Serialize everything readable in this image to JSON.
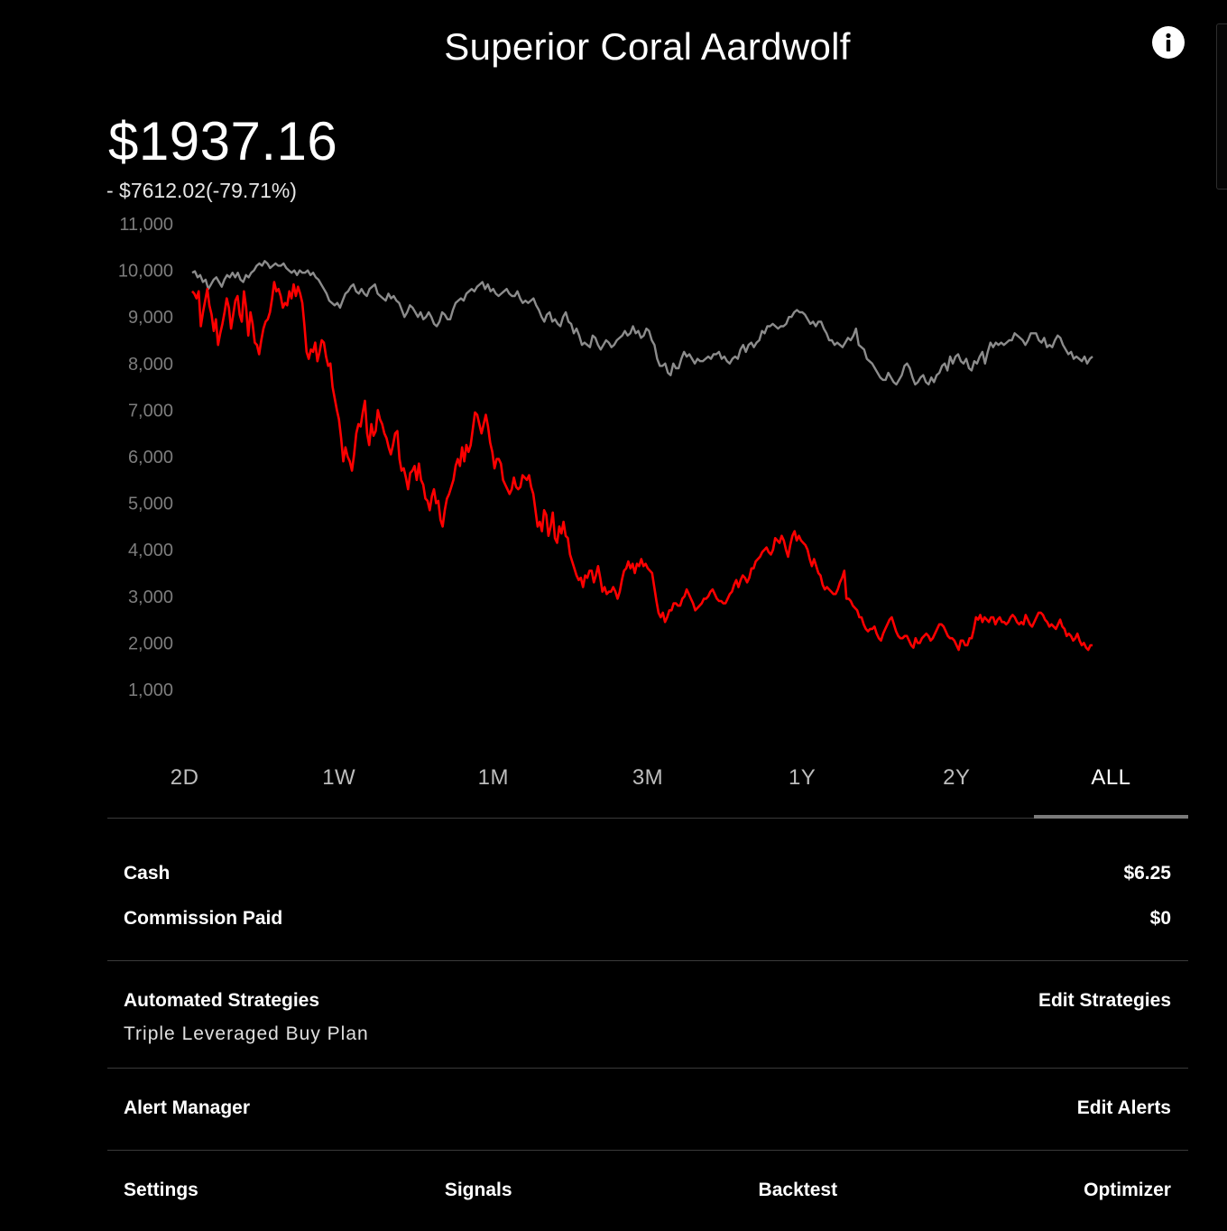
{
  "header": {
    "title": "Superior Coral Aardwolf",
    "info_icon": "info-icon"
  },
  "portfolio": {
    "balance": "$1937.16",
    "change": "- $7612.02(-79.71%)"
  },
  "chart_data": {
    "type": "line",
    "y_ticks": [
      "11,000",
      "10,000",
      "9,000",
      "8,000",
      "7,000",
      "6,000",
      "5,000",
      "4,000",
      "3,000",
      "2,000",
      "1,000"
    ],
    "ylim": [
      0,
      11000
    ],
    "grid": false,
    "series": [
      {
        "color": "#8c8c8c",
        "values": [
          9950,
          9980,
          9850,
          9900,
          9750,
          9800,
          9600,
          9700,
          9800,
          9850,
          9750,
          9650,
          9800,
          9900,
          9850,
          9950,
          9850,
          9950,
          9800,
          9750,
          9900,
          9850,
          9950,
          10000,
          10100,
          10150,
          10100,
          10200,
          10150,
          10050,
          10100,
          10150,
          10100,
          10100,
          10150,
          10050,
          10000,
          9950,
          10000,
          9900,
          10000,
          9950,
          9950,
          10000,
          9900,
          9950,
          9850,
          9800,
          9700,
          9600,
          9500,
          9350,
          9300,
          9250,
          9300,
          9200,
          9350,
          9500,
          9550,
          9650,
          9700,
          9550,
          9500,
          9600,
          9500,
          9450,
          9600,
          9650,
          9700,
          9500,
          9450,
          9400,
          9350,
          9500,
          9400,
          9450,
          9350,
          9300,
          9150,
          9000,
          9100,
          9250,
          9200,
          9100,
          9000,
          9100,
          8950,
          9000,
          9100,
          9000,
          8850,
          8800,
          8900,
          9100,
          9050,
          8950,
          8950,
          9150,
          9300,
          9350,
          9400,
          9350,
          9500,
          9550,
          9600,
          9550,
          9650,
          9700,
          9750,
          9600,
          9700,
          9550,
          9600,
          9500,
          9450,
          9500,
          9550,
          9600,
          9500,
          9450,
          9450,
          9550,
          9400,
          9300,
          9350,
          9300,
          9350,
          9400,
          9250,
          9150,
          9000,
          8900,
          9050,
          9100,
          8900,
          8950,
          8850,
          8800,
          9000,
          9100,
          8900,
          8850,
          8650,
          8750,
          8600,
          8400,
          8450,
          8400,
          8350,
          8600,
          8550,
          8400,
          8300,
          8400,
          8500,
          8450,
          8350,
          8400,
          8500,
          8550,
          8600,
          8700,
          8600,
          8650,
          8800,
          8650,
          8700,
          8550,
          8600,
          8750,
          8700,
          8500,
          8400,
          8100,
          7950,
          7950,
          8000,
          7800,
          7750,
          8000,
          7900,
          7900,
          8100,
          8250,
          8150,
          8200,
          8100,
          8000,
          8100,
          8050,
          8050,
          8100,
          8150,
          8100,
          8200,
          8200,
          8250,
          8100,
          8150,
          8050,
          8000,
          8100,
          8150,
          8100,
          8300,
          8400,
          8250,
          8400,
          8450,
          8350,
          8450,
          8500,
          8700,
          8650,
          8800,
          8800,
          8850,
          8800,
          8750,
          8800,
          8800,
          8850,
          9000,
          9000,
          9100,
          9150,
          9100,
          9100,
          9050,
          8950,
          8850,
          8900,
          8800,
          8900,
          8900,
          8750,
          8650,
          8500,
          8500,
          8400,
          8450,
          8400,
          8350,
          8450,
          8550,
          8500,
          8600,
          8750,
          8400,
          8350,
          8300,
          8100,
          8050,
          8000,
          7900,
          7800,
          7700,
          7650,
          7650,
          7800,
          7700,
          7600,
          7550,
          7650,
          7750,
          7950,
          8000,
          7900,
          7700,
          7550,
          7600,
          7700,
          7750,
          7600,
          7550,
          7700,
          7600,
          7750,
          7800,
          7950,
          8000,
          7850,
          8150,
          8000,
          8150,
          8200,
          8050,
          8000,
          8100,
          7900,
          7850,
          8050,
          8000,
          8150,
          8250,
          8000,
          8250,
          8450,
          8350,
          8450,
          8400,
          8450,
          8400,
          8450,
          8500,
          8500,
          8650,
          8600,
          8550,
          8500,
          8400,
          8500,
          8650,
          8650,
          8650,
          8500,
          8450,
          8550,
          8350,
          8400,
          8350,
          8500,
          8600,
          8550,
          8400,
          8300,
          8200,
          8250,
          8100,
          8150,
          8100,
          8050,
          8150,
          8000,
          8100,
          8150
        ]
      },
      {
        "color": "#ff0000",
        "values": [
          9550,
          9500,
          9400,
          9550,
          8800,
          9100,
          9350,
          9600,
          9250,
          9050,
          8700,
          8950,
          8400,
          8650,
          8850,
          9100,
          9400,
          9200,
          8750,
          9050,
          9350,
          9450,
          9050,
          8900,
          9550,
          9200,
          8600,
          9100,
          8850,
          8450,
          8400,
          8200,
          8500,
          8750,
          8900,
          8950,
          9100,
          9400,
          9750,
          9550,
          9600,
          9450,
          9200,
          9300,
          9250,
          9550,
          9400,
          9700,
          9450,
          9650,
          9500,
          9300,
          8800,
          8250,
          8100,
          8300,
          8250,
          8450,
          8050,
          8250,
          8500,
          8450,
          8150,
          7950,
          8000,
          7500,
          7250,
          7000,
          6800,
          6400,
          5900,
          6200,
          6000,
          5900,
          5700,
          6050,
          6500,
          6700,
          6650,
          6950,
          7200,
          6500,
          6250,
          6700,
          6450,
          6550,
          7000,
          6800,
          6700,
          6500,
          6400,
          6200,
          6050,
          6250,
          6500,
          6550,
          5950,
          5700,
          5750,
          5550,
          5300,
          5650,
          5700,
          5800,
          5500,
          5850,
          5500,
          5400,
          5100,
          5050,
          4850,
          5150,
          5300,
          5000,
          5050,
          4650,
          4500,
          4850,
          5100,
          5200,
          5350,
          5500,
          5800,
          5950,
          5800,
          6200,
          5900,
          6250,
          6100,
          6250,
          6600,
          6950,
          6900,
          6700,
          6500,
          6700,
          6900,
          6650,
          6300,
          6100,
          5750,
          5950,
          5950,
          5850,
          5500,
          5400,
          5300,
          5200,
          5300,
          5550,
          5350,
          5300,
          5350,
          5600,
          5550,
          5500,
          5600,
          5350,
          5200,
          4850,
          4500,
          4600,
          4400,
          4850,
          4750,
          4300,
          4500,
          4800,
          4250,
          4150,
          4500,
          4350,
          4600,
          4300,
          4250,
          3900,
          3750,
          3600,
          3450,
          3350,
          3400,
          3200,
          3450,
          3400,
          3550,
          3550,
          3300,
          3450,
          3650,
          3400,
          3100,
          3200,
          3050,
          3100,
          3100,
          3200,
          3100,
          2950,
          3100,
          3350,
          3550,
          3600,
          3750,
          3600,
          3700,
          3500,
          3700,
          3650,
          3800,
          3650,
          3700,
          3600,
          3550,
          3500,
          3200,
          2900,
          2650,
          2550,
          2650,
          2450,
          2550,
          2700,
          2700,
          2850,
          2850,
          2800,
          2800,
          2950,
          3000,
          3150,
          3050,
          2950,
          2850,
          2700,
          2750,
          2800,
          2850,
          2950,
          2950,
          3000,
          3100,
          3150,
          3050,
          2950,
          2900,
          2900,
          2850,
          2850,
          2950,
          3050,
          3100,
          3250,
          3350,
          3200,
          3350,
          3450,
          3400,
          3300,
          3400,
          3600,
          3600,
          3750,
          3800,
          3850,
          3950,
          4000,
          4050,
          3950,
          3900,
          4000,
          4250,
          4200,
          4150,
          4300,
          4200,
          4000,
          3850,
          4100,
          4300,
          4400,
          4200,
          4300,
          4200,
          4150,
          4100,
          4000,
          3800,
          3650,
          3800,
          3650,
          3500,
          3450,
          3250,
          3150,
          3200,
          3150,
          3100,
          3050,
          3050,
          3150,
          3300,
          3400,
          3550,
          2950,
          2950,
          2900,
          2800,
          2750,
          2700,
          2550,
          2550,
          2400,
          2300,
          2250,
          2300,
          2300,
          2350,
          2200,
          2100,
          2050,
          2200,
          2300,
          2400,
          2500,
          2550,
          2400,
          2250,
          2150,
          2100,
          2100,
          2150,
          2150,
          2050,
          1950,
          1900,
          2100,
          2000,
          2000,
          2100,
          2150,
          2200,
          2150,
          2050,
          2100,
          2200,
          2300,
          2400,
          2400,
          2350,
          2250,
          2150,
          2100,
          2100,
          2050,
          1950,
          1850,
          2050,
          2050,
          1950,
          1950,
          2100,
          2100,
          2300,
          2550,
          2500,
          2600,
          2450,
          2550,
          2500,
          2450,
          2550,
          2550,
          2400,
          2500,
          2550,
          2450,
          2450,
          2400,
          2450,
          2550,
          2600,
          2550,
          2450,
          2400,
          2450,
          2400,
          2600,
          2500,
          2400,
          2350,
          2450,
          2550,
          2650,
          2650,
          2600,
          2500,
          2450,
          2350,
          2400,
          2350,
          2300,
          2400,
          2500,
          2350,
          2300,
          2150,
          2200,
          2150,
          2050,
          2100,
          2200,
          2050,
          1950,
          2000,
          1900,
          1850,
          1950,
          1950
        ]
      }
    ]
  },
  "ranges": [
    "2D",
    "1W",
    "1M",
    "3M",
    "1Y",
    "2Y",
    "ALL"
  ],
  "active_range": "ALL",
  "stats": {
    "cash_label": "Cash",
    "cash_value": "$6.25",
    "commission_label": "Commission Paid",
    "commission_value": "$0"
  },
  "strategies": {
    "label": "Automated Strategies",
    "action": "Edit Strategies",
    "item": "Triple Leveraged Buy Plan"
  },
  "alerts": {
    "label": "Alert Manager",
    "action": "Edit Alerts"
  },
  "footer": {
    "settings": "Settings",
    "signals": "Signals",
    "backtest": "Backtest",
    "optimizer": "Optimizer"
  }
}
